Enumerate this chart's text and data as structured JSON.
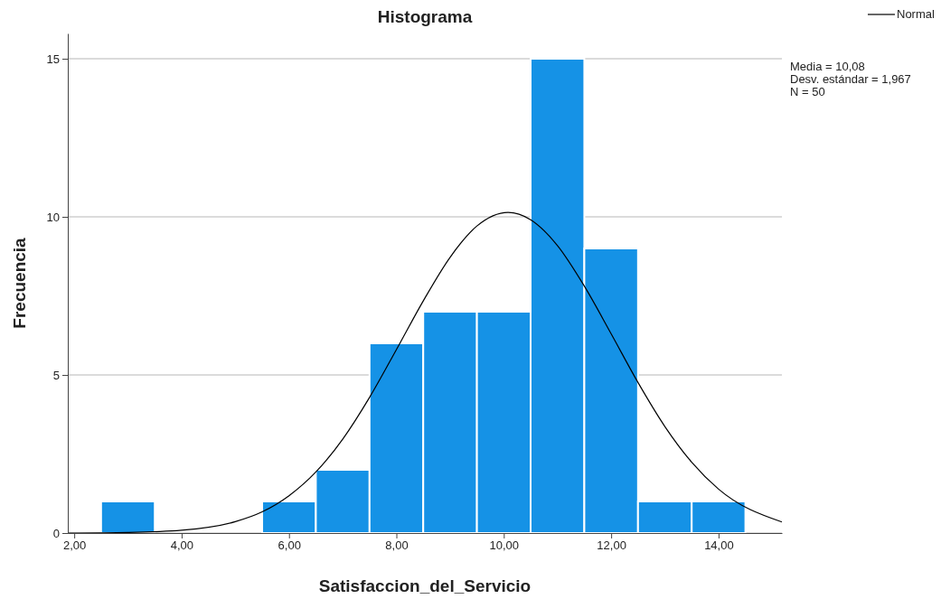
{
  "chart_data": {
    "type": "histogram",
    "title": "Histograma",
    "xlabel": "Satisfaccion_del_Servicio",
    "ylabel": "Frecuencia",
    "bins": [
      2.5,
      3.5,
      4.5,
      5.5,
      6.5,
      7.5,
      8.5,
      9.5,
      10.5,
      11.5,
      12.5,
      13.5,
      14.5
    ],
    "values": [
      1,
      0,
      0,
      1,
      2,
      6,
      7,
      7,
      15,
      9,
      1,
      1
    ],
    "color": "#1592e6",
    "series": [
      {
        "type": "line",
        "name": "Normal",
        "color": "#000000",
        "x": [
          1.88,
          3,
          4,
          5,
          5.5,
          6,
          6.5,
          7,
          7.5,
          8,
          8.5,
          9,
          9.5,
          10.08,
          10.5,
          11,
          11.5,
          12,
          12.5,
          13,
          13.5,
          14,
          15.18
        ],
        "values": [
          0,
          0.02,
          0.09,
          0.36,
          0.67,
          1.18,
          1.93,
          2.97,
          4.29,
          5.8,
          7.34,
          8.72,
          9.71,
          10.14,
          9.91,
          9.09,
          7.81,
          6.3,
          4.76,
          3.37,
          2.24,
          1.39,
          0.35
        ]
      }
    ],
    "xlim": [
      1.88,
      15.18
    ],
    "ylim": [
      0,
      15.8
    ],
    "xticks": [
      {
        "value": 2,
        "label": "2,00"
      },
      {
        "value": 4,
        "label": "4,00"
      },
      {
        "value": 6,
        "label": "6,00"
      },
      {
        "value": 8,
        "label": "8,00"
      },
      {
        "value": 10,
        "label": "10,00"
      },
      {
        "value": 12,
        "label": "12,00"
      },
      {
        "value": 14,
        "label": "14,00"
      }
    ],
    "yticks": [
      0,
      5,
      10,
      15
    ],
    "grid": "y",
    "legend": "top right",
    "annotations": [
      "Media = 10,08",
      "Desv. estándar = 1,967",
      "N = 50"
    ]
  }
}
